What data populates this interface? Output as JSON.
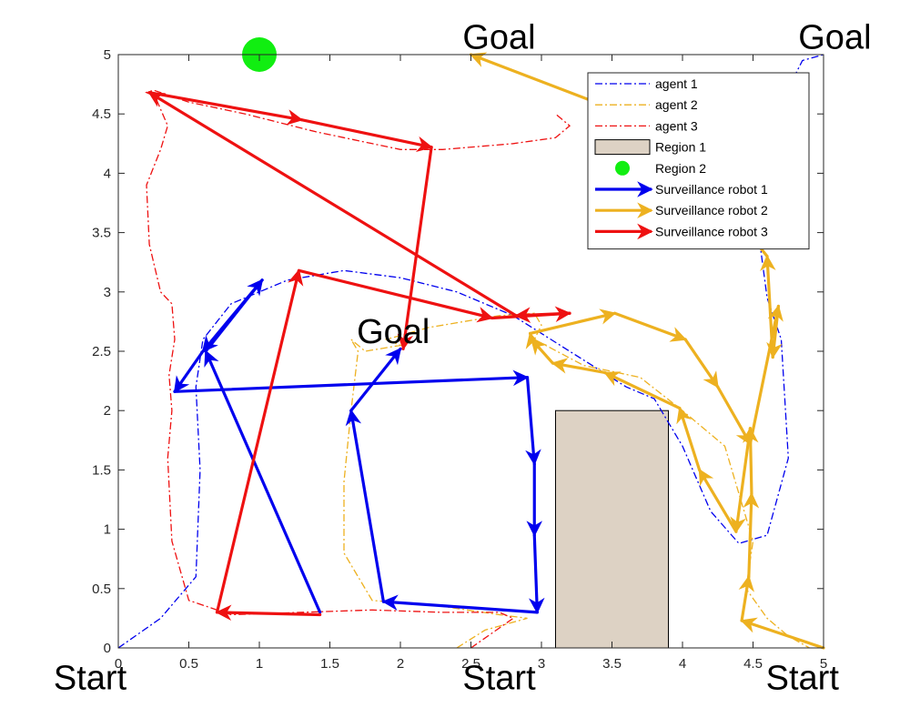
{
  "chart_data": {
    "type": "line",
    "xlim": [
      0,
      5
    ],
    "ylim": [
      0,
      5
    ],
    "xticks": [
      "0",
      "0.5",
      "1",
      "1.5",
      "2",
      "2.5",
      "3",
      "3.5",
      "4",
      "4.5",
      "5"
    ],
    "yticks": [
      "0",
      "0.5",
      "1",
      "1.5",
      "2",
      "2.5",
      "3",
      "3.5",
      "4",
      "4.5",
      "5"
    ],
    "colors": {
      "blue": "#0000ee",
      "orange": "#edb120",
      "red": "#ee1111",
      "region1": "#ddd2c4",
      "region2": "#11ee11"
    },
    "series": [
      {
        "name": "agent 1",
        "style": "dash-dot",
        "color": "blue",
        "x": [
          0,
          0.3,
          0.55,
          0.58,
          0.55,
          0.6,
          0.8,
          1.2,
          1.6,
          2.0,
          2.4,
          2.8,
          3.2,
          3.6,
          3.8,
          4.0,
          4.2,
          4.4,
          4.6,
          4.75,
          4.7,
          4.6,
          4.55,
          4.6,
          4.7,
          4.85,
          5
        ],
        "y": [
          0,
          0.25,
          0.6,
          1.5,
          2.2,
          2.6,
          2.9,
          3.1,
          3.18,
          3.12,
          3.0,
          2.8,
          2.5,
          2.2,
          2.1,
          1.7,
          1.15,
          0.88,
          0.95,
          1.6,
          2.6,
          2.95,
          3.4,
          4.0,
          4.6,
          4.95,
          5
        ]
      },
      {
        "name": "agent 2",
        "style": "dash-dot",
        "color": "orange",
        "x": [
          2.4,
          2.6,
          2.9,
          2.7,
          2.3,
          1.8,
          1.6,
          1.6,
          1.65,
          1.7,
          1.65,
          1.75,
          2.0,
          2.0,
          1.9,
          2.2,
          2.7,
          2.95,
          3.0,
          2.95,
          3.3,
          3.7,
          4.0,
          4.3,
          4.4,
          4.5,
          4.45,
          4.6,
          4.75,
          4.9
        ],
        "y": [
          0.0,
          0.15,
          0.25,
          0.28,
          0.35,
          0.4,
          0.8,
          1.4,
          2.0,
          2.5,
          2.6,
          2.5,
          2.55,
          2.55,
          2.6,
          2.7,
          2.8,
          2.82,
          2.72,
          2.6,
          2.38,
          2.28,
          2.0,
          1.7,
          1.3,
          0.9,
          0.5,
          0.25,
          0.1,
          0.0
        ]
      },
      {
        "name": "agent 3",
        "style": "dash-dot",
        "color": "red",
        "x": [
          2.5,
          2.8,
          2.7,
          2.3,
          1.8,
          1.3,
          0.8,
          0.5,
          0.38,
          0.35,
          0.38,
          0.36,
          0.4,
          0.38,
          0.3,
          0.22,
          0.2,
          0.3,
          0.35,
          0.26,
          0.2,
          0.25,
          0.5,
          0.9,
          1.4,
          1.8,
          2.0,
          2.3,
          2.8,
          3.1,
          3.2,
          3.1
        ],
        "y": [
          0.0,
          0.25,
          0.3,
          0.3,
          0.32,
          0.3,
          0.28,
          0.4,
          0.9,
          1.6,
          2.0,
          2.3,
          2.6,
          2.9,
          3.0,
          3.4,
          3.9,
          4.2,
          4.4,
          4.65,
          4.68,
          4.7,
          4.6,
          4.5,
          4.35,
          4.25,
          4.2,
          4.2,
          4.25,
          4.3,
          4.4,
          4.5
        ]
      }
    ],
    "robots": [
      {
        "name": "Surveillance robot 1",
        "color": "blue",
        "x": [
          1.43,
          0.62,
          1.02,
          0.6,
          0.4,
          2.9,
          2.95,
          2.95,
          2.97,
          1.88,
          1.65,
          2.0
        ],
        "y": [
          0.3,
          2.5,
          3.1,
          2.5,
          2.16,
          2.28,
          1.55,
          0.95,
          0.3,
          0.39,
          2.0,
          2.52
        ]
      },
      {
        "name": "Surveillance robot 2",
        "color": "orange",
        "x": [
          5.0,
          4.42,
          4.47,
          4.49,
          4.48,
          4.38,
          4.12,
          3.98,
          3.45,
          3.08,
          2.93,
          2.92,
          3.52,
          4.02,
          4.25,
          4.48,
          4.68,
          4.64,
          4.6,
          4.2,
          3.6,
          2.5
        ],
        "y": [
          0.0,
          0.23,
          0.6,
          1.3,
          1.85,
          0.98,
          1.5,
          2.02,
          2.32,
          2.4,
          2.6,
          2.65,
          2.82,
          2.6,
          2.2,
          1.72,
          2.88,
          2.45,
          3.3,
          3.9,
          4.5,
          5.0
        ]
      },
      {
        "name": "Surveillance robot 3",
        "color": "red",
        "x": [
          1.43,
          0.7,
          1.28,
          2.65,
          3.2,
          2.82,
          0.22,
          1.3,
          2.22,
          2.02
        ],
        "y": [
          0.28,
          0.3,
          3.18,
          2.78,
          2.82,
          2.8,
          4.68,
          4.45,
          4.22,
          2.52
        ]
      }
    ],
    "regions": [
      {
        "name": "Region 1",
        "shape": "rectangle",
        "x": [
          3.1,
          3.9
        ],
        "y": [
          0.0,
          2.0
        ]
      },
      {
        "name": "Region 2",
        "shape": "circle",
        "x": 1.0,
        "y": 5.0,
        "r": 0.12
      }
    ],
    "annotations": [
      {
        "text": "Start",
        "x": -0.2,
        "y": -0.35
      },
      {
        "text": "Start",
        "x": 2.7,
        "y": -0.35
      },
      {
        "text": "Start",
        "x": 4.85,
        "y": -0.35
      },
      {
        "text": "Goal",
        "x": 2.7,
        "y": 5.05
      },
      {
        "text": "Goal",
        "x": 5.08,
        "y": 5.05
      },
      {
        "text": "Goal",
        "x": 1.95,
        "y": 2.57
      }
    ],
    "legend": {
      "position": "top-right",
      "entries": [
        "agent 1",
        "agent 2",
        "agent 3",
        "Region 1",
        "Region 2",
        "Surveillance robot 1",
        "Surveillance robot 2",
        "Surveillance robot 3"
      ]
    }
  }
}
